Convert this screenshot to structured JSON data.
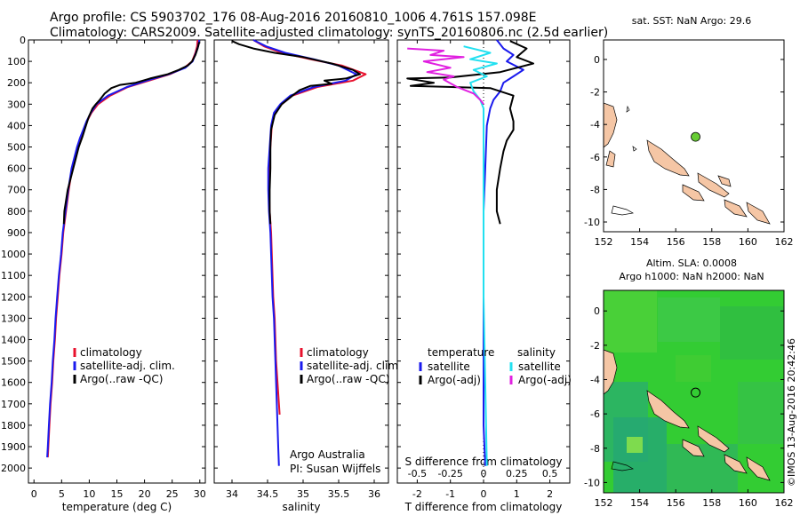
{
  "header": {
    "line1": "Argo profile: CS 5903702_176 08-Aug-2016 20160810_1006 4.761S 157.098E",
    "line2": "Climatology: CARS2009. Satellite-adjusted climatology: synTS_20160806.nc (2.5d earlier)"
  },
  "footer": {
    "credit_line1": "Argo Australia",
    "credit_line2": "PI: Susan Wijffels",
    "imos_stamp": "©IMOS 13-Aug-2016 20:42:46"
  },
  "colors": {
    "climatology": "#e8112d",
    "satellite": "#1a1aee",
    "argo": "#000000",
    "salinity_satellite": "#22e0f0",
    "salinity_argo": "#e020e0",
    "land": "#f5c6a5",
    "marker_fill": "#66cc33",
    "ocean_green": "#33cc33"
  },
  "chart_data": [
    {
      "type": "line",
      "panel": "temperature",
      "xlabel": "temperature (deg C)",
      "ylabel": "",
      "xlim": [
        -1,
        31
      ],
      "ylim": [
        2070,
        0
      ],
      "xticks": [
        0,
        5,
        10,
        15,
        20,
        25,
        30
      ],
      "yticks": [
        0,
        100,
        200,
        300,
        400,
        500,
        600,
        700,
        800,
        900,
        1000,
        1100,
        1200,
        1300,
        1400,
        1500,
        1600,
        1700,
        1800,
        1900,
        2000
      ],
      "legend_position": "lower-center",
      "series": [
        {
          "name": "climatology",
          "color": "#e8112d",
          "points": [
            [
              29.6,
              0
            ],
            [
              29.5,
              30
            ],
            [
              29.2,
              60
            ],
            [
              28.6,
              100
            ],
            [
              27.2,
              130
            ],
            [
              24.6,
              160
            ],
            [
              20.8,
              190
            ],
            [
              17,
              220
            ],
            [
              13.8,
              260
            ],
            [
              11.6,
              300
            ],
            [
              10.4,
              340
            ],
            [
              9.6,
              380
            ],
            [
              9.0,
              420
            ],
            [
              8.4,
              460
            ],
            [
              7.9,
              500
            ],
            [
              7.4,
              550
            ],
            [
              6.9,
              600
            ],
            [
              6.3,
              700
            ],
            [
              5.8,
              800
            ],
            [
              5.3,
              900
            ],
            [
              5.0,
              1000
            ],
            [
              4.6,
              1100
            ],
            [
              4.3,
              1200
            ],
            [
              4.0,
              1300
            ],
            [
              3.8,
              1400
            ],
            [
              3.5,
              1500
            ],
            [
              3.3,
              1600
            ],
            [
              3.0,
              1700
            ],
            [
              2.8,
              1800
            ],
            [
              2.6,
              1900
            ],
            [
              2.5,
              1950
            ]
          ]
        },
        {
          "name": "satellite-adj. clim.",
          "color": "#1a1aee",
          "points": [
            [
              29.9,
              0
            ],
            [
              29.7,
              30
            ],
            [
              29.3,
              60
            ],
            [
              28.7,
              100
            ],
            [
              27.4,
              130
            ],
            [
              24.4,
              160
            ],
            [
              20.4,
              190
            ],
            [
              16.8,
              220
            ],
            [
              13.4,
              260
            ],
            [
              11.3,
              300
            ],
            [
              10.3,
              340
            ],
            [
              9.5,
              380
            ],
            [
              8.9,
              420
            ],
            [
              8.3,
              460
            ],
            [
              7.8,
              500
            ],
            [
              7.3,
              550
            ],
            [
              6.8,
              600
            ],
            [
              6.2,
              700
            ],
            [
              5.7,
              800
            ],
            [
              5.2,
              900
            ],
            [
              4.9,
              1000
            ],
            [
              4.5,
              1100
            ],
            [
              4.2,
              1200
            ],
            [
              3.9,
              1300
            ],
            [
              3.7,
              1400
            ],
            [
              3.4,
              1500
            ],
            [
              3.2,
              1600
            ],
            [
              2.9,
              1700
            ],
            [
              2.7,
              1800
            ],
            [
              2.5,
              1900
            ],
            [
              2.4,
              1950
            ]
          ]
        },
        {
          "name": "Argo(..raw -QC)",
          "color": "#000000",
          "points": [
            [
              29.9,
              10
            ],
            [
              29.6,
              40
            ],
            [
              29.2,
              70
            ],
            [
              28.6,
              100
            ],
            [
              27.8,
              120
            ],
            [
              26.2,
              140
            ],
            [
              24.2,
              160
            ],
            [
              21.0,
              180
            ],
            [
              18.4,
              200
            ],
            [
              15.6,
              210
            ],
            [
              14.0,
              225
            ],
            [
              12.8,
              250
            ],
            [
              11.9,
              280
            ],
            [
              11.2,
              300
            ],
            [
              10.6,
              320
            ],
            [
              9.9,
              360
            ],
            [
              9.4,
              400
            ],
            [
              8.8,
              450
            ],
            [
              8.1,
              500
            ],
            [
              7.6,
              550
            ],
            [
              7.1,
              600
            ],
            [
              6.6,
              650
            ],
            [
              6.1,
              700
            ],
            [
              5.8,
              750
            ],
            [
              5.5,
              800
            ],
            [
              5.4,
              860
            ]
          ]
        }
      ]
    },
    {
      "type": "line",
      "panel": "salinity",
      "xlabel": "salinity",
      "ylabel": "",
      "xlim": [
        33.75,
        36.2
      ],
      "ylim": [
        2070,
        0
      ],
      "xticks": [
        34,
        34.5,
        35,
        35.5,
        36
      ],
      "legend_position": "lower-center",
      "series": [
        {
          "name": "climatology",
          "color": "#e8112d",
          "points": [
            [
              34.3,
              0
            ],
            [
              34.45,
              30
            ],
            [
              34.7,
              60
            ],
            [
              35.1,
              90
            ],
            [
              35.55,
              120
            ],
            [
              35.88,
              160
            ],
            [
              35.7,
              190
            ],
            [
              35.2,
              220
            ],
            [
              34.85,
              260
            ],
            [
              34.7,
              300
            ],
            [
              34.6,
              340
            ],
            [
              34.56,
              400
            ],
            [
              34.54,
              500
            ],
            [
              34.52,
              600
            ],
            [
              34.52,
              700
            ],
            [
              34.53,
              800
            ],
            [
              34.55,
              900
            ],
            [
              34.56,
              1000
            ],
            [
              34.57,
              1100
            ],
            [
              34.58,
              1200
            ],
            [
              34.6,
              1300
            ],
            [
              34.61,
              1400
            ],
            [
              34.62,
              1500
            ],
            [
              34.64,
              1600
            ],
            [
              34.66,
              1700
            ],
            [
              34.67,
              1750
            ]
          ]
        },
        {
          "name": "satellite-adj. clim.",
          "color": "#1a1aee",
          "points": [
            [
              34.3,
              0
            ],
            [
              34.48,
              30
            ],
            [
              34.75,
              60
            ],
            [
              35.15,
              90
            ],
            [
              35.5,
              120
            ],
            [
              35.75,
              160
            ],
            [
              35.6,
              190
            ],
            [
              35.15,
              220
            ],
            [
              34.82,
              260
            ],
            [
              34.68,
              300
            ],
            [
              34.59,
              340
            ],
            [
              34.55,
              400
            ],
            [
              34.53,
              500
            ],
            [
              34.51,
              600
            ],
            [
              34.51,
              700
            ],
            [
              34.52,
              800
            ],
            [
              34.54,
              900
            ],
            [
              34.55,
              1000
            ],
            [
              34.56,
              1100
            ],
            [
              34.57,
              1200
            ],
            [
              34.59,
              1300
            ],
            [
              34.6,
              1400
            ],
            [
              34.61,
              1500
            ],
            [
              34.62,
              1600
            ],
            [
              34.63,
              1700
            ],
            [
              34.64,
              1800
            ],
            [
              34.65,
              1900
            ],
            [
              34.66,
              1990
            ]
          ]
        },
        {
          "name": "Argo(..raw -QC)",
          "color": "#000000",
          "points": [
            [
              34.0,
              5
            ],
            [
              34.1,
              20
            ],
            [
              34.3,
              40
            ],
            [
              34.6,
              60
            ],
            [
              35.0,
              80
            ],
            [
              35.4,
              110
            ],
            [
              35.7,
              140
            ],
            [
              35.8,
              160
            ],
            [
              35.6,
              180
            ],
            [
              35.3,
              190
            ],
            [
              35.4,
              205
            ],
            [
              35.1,
              215
            ],
            [
              34.95,
              235
            ],
            [
              34.85,
              260
            ],
            [
              34.7,
              300
            ],
            [
              34.6,
              350
            ],
            [
              34.55,
              420
            ],
            [
              34.54,
              500
            ],
            [
              34.54,
              600
            ],
            [
              34.53,
              700
            ],
            [
              34.53,
              800
            ],
            [
              34.54,
              860
            ]
          ]
        }
      ]
    },
    {
      "type": "line",
      "panel": "difference",
      "xlabel": "T difference from climatology",
      "xlabel_top": "S difference from climatology",
      "xlim": [
        -2.6,
        2.6
      ],
      "ylim": [
        2070,
        0
      ],
      "xticks": [
        -2,
        -1,
        0,
        1,
        2
      ],
      "s_ticks": [
        "-0.5",
        "-0.25",
        "0",
        "0.25",
        "0.5"
      ],
      "legend": {
        "temperature_heading": "temperature",
        "salinity_heading": "salinity",
        "satellite": "satellite",
        "argo": "Argo(-adj)"
      },
      "series": [
        {
          "name": "temperature satellite",
          "color": "#1a1aee",
          "points": [
            [
              0.4,
              0
            ],
            [
              0.6,
              40
            ],
            [
              0.9,
              70
            ],
            [
              0.7,
              100
            ],
            [
              1.2,
              140
            ],
            [
              0.9,
              170
            ],
            [
              0.6,
              200
            ],
            [
              0.5,
              240
            ],
            [
              0.3,
              280
            ],
            [
              0.2,
              320
            ],
            [
              0.1,
              400
            ],
            [
              0.05,
              600
            ],
            [
              0.0,
              800
            ],
            [
              0.0,
              1000
            ],
            [
              0.0,
              1400
            ],
            [
              0.0,
              1800
            ],
            [
              0.05,
              1990
            ]
          ]
        },
        {
          "name": "temperature Argo(-adj)",
          "color": "#000000",
          "points": [
            [
              0.8,
              5
            ],
            [
              1.3,
              40
            ],
            [
              1.0,
              80
            ],
            [
              1.5,
              110
            ],
            [
              0.5,
              150
            ],
            [
              -1.0,
              175
            ],
            [
              -2.3,
              180
            ],
            [
              -1.5,
              200
            ],
            [
              -2.2,
              215
            ],
            [
              0.2,
              225
            ],
            [
              0.9,
              260
            ],
            [
              0.8,
              320
            ],
            [
              0.9,
              380
            ],
            [
              0.9,
              420
            ],
            [
              0.7,
              470
            ],
            [
              0.6,
              520
            ],
            [
              0.5,
              600
            ],
            [
              0.4,
              700
            ],
            [
              0.4,
              800
            ],
            [
              0.5,
              860
            ]
          ]
        },
        {
          "name": "salinity satellite",
          "color": "#22e0f0",
          "points": [
            [
              -0.6,
              30
            ],
            [
              0.2,
              60
            ],
            [
              -0.4,
              90
            ],
            [
              0.4,
              110
            ],
            [
              -0.3,
              140
            ],
            [
              0.1,
              170
            ],
            [
              -0.4,
              200
            ],
            [
              -0.3,
              240
            ],
            [
              -0.1,
              280
            ],
            [
              0.0,
              320
            ],
            [
              0.0,
              400
            ],
            [
              0.0,
              800
            ],
            [
              0.0,
              1200
            ],
            [
              0.05,
              1600
            ],
            [
              0.1,
              1990
            ]
          ]
        },
        {
          "name": "salinity Argo(-adj)",
          "color": "#e020e0",
          "points": [
            [
              -2.3,
              40
            ],
            [
              -1.2,
              50
            ],
            [
              -1.6,
              70
            ],
            [
              -0.6,
              80
            ],
            [
              -1.8,
              100
            ],
            [
              -1.0,
              130
            ],
            [
              -1.7,
              150
            ],
            [
              -0.9,
              170
            ],
            [
              -1.2,
              185
            ],
            [
              -0.8,
              220
            ],
            [
              -0.3,
              250
            ],
            [
              -0.1,
              280
            ],
            [
              0.0,
              300
            ]
          ]
        }
      ]
    },
    {
      "type": "scatter",
      "panel": "map_sst",
      "title": "sat. SST: NaN Argo: 29.6",
      "xlim": [
        152,
        162
      ],
      "ylim": [
        -10.6,
        1.2
      ],
      "xticks": [
        152,
        154,
        156,
        158,
        160,
        162
      ],
      "yticks": [
        0,
        -2,
        -4,
        -6,
        -8,
        -10
      ],
      "marker": {
        "lon": 157.1,
        "lat": -4.76
      }
    },
    {
      "type": "heatmap",
      "panel": "map_sla",
      "title_line1": "Altim. SLA: 0.0008",
      "title_line2": "Argo h1000: NaN h2000: NaN",
      "xlim": [
        152,
        162
      ],
      "ylim": [
        -10.6,
        1.2
      ],
      "xticks": [
        152,
        154,
        156,
        158,
        160,
        162
      ],
      "yticks": [
        0,
        -2,
        -4,
        -6,
        -8,
        -10
      ],
      "marker": {
        "lon": 157.1,
        "lat": -4.76
      }
    }
  ]
}
